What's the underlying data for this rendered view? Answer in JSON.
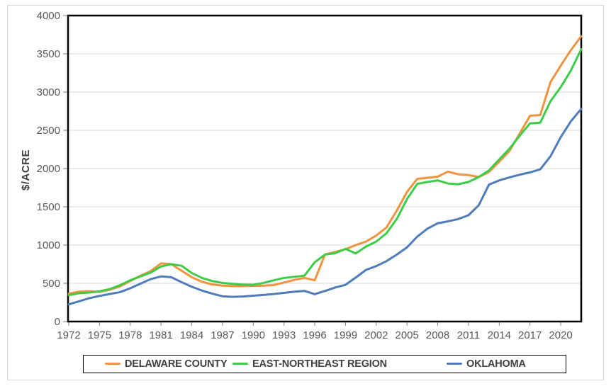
{
  "chart_data": {
    "type": "line",
    "title": "",
    "xlabel": "",
    "ylabel": "$/ACRE",
    "xlim": [
      1972,
      2022
    ],
    "ylim": [
      0,
      4000
    ],
    "grid": "horizontal",
    "legend_position": "bottom",
    "x_tick_years": [
      1972,
      1975,
      1978,
      1981,
      1984,
      1987,
      1990,
      1993,
      1996,
      1999,
      2002,
      2005,
      2008,
      2011,
      2014,
      2017,
      2020
    ],
    "y_ticks": [
      0,
      500,
      1000,
      1500,
      2000,
      2500,
      3000,
      3500,
      4000
    ],
    "series": [
      {
        "name": "DELAWARE COUNTY",
        "color": "#F0923E",
        "values": [
          365,
          390,
          395,
          388,
          415,
          460,
          530,
          600,
          660,
          760,
          750,
          665,
          580,
          520,
          485,
          470,
          463,
          463,
          468,
          470,
          478,
          510,
          545,
          570,
          540,
          877,
          910,
          945,
          1000,
          1045,
          1125,
          1230,
          1450,
          1695,
          1865,
          1880,
          1895,
          1960,
          1925,
          1915,
          1890,
          1955,
          2090,
          2230,
          2460,
          2690,
          2700,
          3130,
          3345,
          3550,
          3730
        ]
      },
      {
        "name": "EAST-NORTHEAST REGION",
        "color": "#3CCC47",
        "values": [
          345,
          370,
          380,
          395,
          425,
          475,
          540,
          590,
          640,
          720,
          750,
          730,
          635,
          570,
          530,
          505,
          493,
          483,
          480,
          505,
          540,
          570,
          585,
          600,
          775,
          875,
          895,
          950,
          890,
          980,
          1045,
          1155,
          1340,
          1600,
          1800,
          1825,
          1845,
          1805,
          1795,
          1825,
          1890,
          1975,
          2120,
          2260,
          2430,
          2590,
          2600,
          2880,
          3065,
          3285,
          3560
        ]
      },
      {
        "name": "OKLAHOMA",
        "color": "#4E7CBA",
        "values": [
          225,
          265,
          305,
          335,
          360,
          385,
          435,
          495,
          555,
          590,
          580,
          515,
          455,
          405,
          365,
          330,
          323,
          328,
          338,
          348,
          360,
          375,
          390,
          400,
          358,
          400,
          445,
          480,
          575,
          675,
          725,
          790,
          875,
          970,
          1110,
          1215,
          1285,
          1310,
          1340,
          1390,
          1520,
          1790,
          1845,
          1885,
          1920,
          1950,
          1990,
          2160,
          2410,
          2620,
          2780
        ]
      }
    ],
    "colors": {
      "background": "#FFFFFF",
      "frame_border": "#D9D9D9",
      "plot_border": "#000000",
      "gridline": "#D9D9D9",
      "tick": "#808080",
      "axis_text": "#595959",
      "axis_title": "#404040",
      "legend_text": "#404040",
      "legend_border": "#000000"
    }
  }
}
